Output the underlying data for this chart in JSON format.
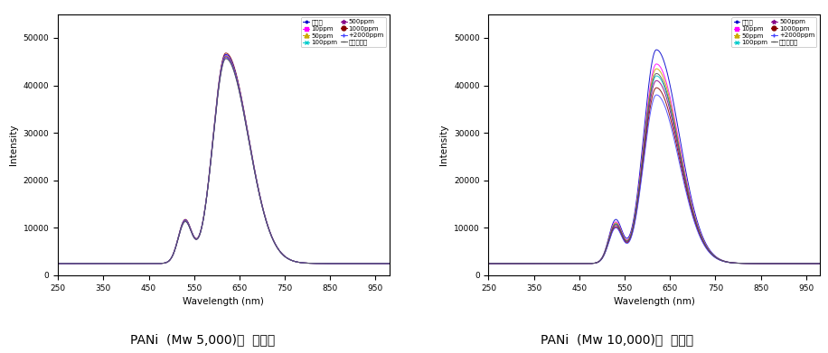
{
  "subplot1_title": "PANi  (Mw 5,000)의  흡광도",
  "subplot2_title": "PANi  (Mw 10,000)의  흡광도",
  "xlabel": "Wavelength (nm)",
  "ylabel": "Intensity",
  "xlim": [
    250,
    980
  ],
  "ylim": [
    0,
    55000
  ],
  "yticks": [
    0,
    10000,
    20000,
    30000,
    40000,
    50000
  ],
  "xticks": [
    250,
    350,
    450,
    550,
    650,
    750,
    850,
    950
  ],
  "baseline": 2500,
  "shoulder_x": 530,
  "peak_x": 620,
  "legend_entries_left": [
    {
      "label": "콘트롤",
      "color": "#0000cc",
      "marker": "."
    },
    {
      "label": "10ppm",
      "color": "#ff00ff",
      "marker": "s"
    },
    {
      "label": "50ppm",
      "color": "#ccaa00",
      "marker": "^"
    },
    {
      "label": "100ppm",
      "color": "#00cccc",
      "marker": "x"
    },
    {
      "label": "500ppm",
      "color": "#880088",
      "marker": "*"
    },
    {
      "label": "1000ppm",
      "color": "#880000",
      "marker": "o"
    },
    {
      "+2000ppm": "+2000ppm",
      "label": "+2000ppm",
      "color": "#4444ff",
      "marker": "+"
    },
    {
      "label": "암모니아수",
      "color": "#555555",
      "marker": "-"
    }
  ],
  "curves_plot1": [
    {
      "peak_y": 46800,
      "shoulder_y": 11500,
      "color": "#880000"
    },
    {
      "peak_y": 46500,
      "shoulder_y": 11400,
      "color": "#0000cc"
    },
    {
      "peak_y": 46300,
      "shoulder_y": 11300,
      "color": "#ff00ff"
    },
    {
      "peak_y": 46200,
      "shoulder_y": 11250,
      "color": "#00cccc"
    },
    {
      "peak_y": 46100,
      "shoulder_y": 11200,
      "color": "#ccaa00"
    },
    {
      "peak_y": 46000,
      "shoulder_y": 11150,
      "color": "#880088"
    },
    {
      "peak_y": 45800,
      "shoulder_y": 11100,
      "color": "#4444ff"
    },
    {
      "peak_y": 45600,
      "shoulder_y": 11050,
      "color": "#555555"
    }
  ],
  "curves_plot2": [
    {
      "peak_y": 47500,
      "shoulder_y": 11500,
      "color": "#0000cc"
    },
    {
      "peak_y": 44500,
      "shoulder_y": 11000,
      "color": "#ff00ff"
    },
    {
      "peak_y": 43500,
      "shoulder_y": 10800,
      "color": "#ccaa00"
    },
    {
      "peak_y": 42000,
      "shoulder_y": 10500,
      "color": "#00cccc"
    },
    {
      "peak_y": 41000,
      "shoulder_y": 10300,
      "color": "#880088"
    },
    {
      "peak_y": 39500,
      "shoulder_y": 10000,
      "color": "#880000"
    },
    {
      "peak_y": 38000,
      "shoulder_y": 9800,
      "color": "#4444ff"
    },
    {
      "peak_y": 42500,
      "shoulder_y": 10600,
      "color": "#555555"
    }
  ],
  "bg_color": "#ffffff"
}
